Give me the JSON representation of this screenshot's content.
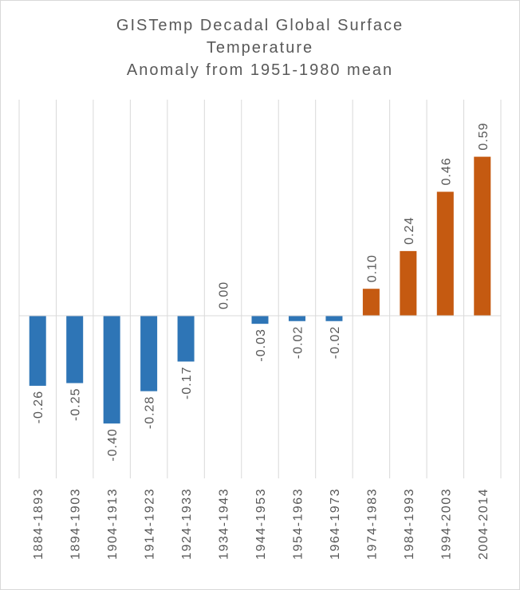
{
  "chart_data": {
    "type": "bar",
    "title": [
      "GISTemp Decadal Global Surface",
      "Temperature",
      "Anomaly from 1951-1980 mean"
    ],
    "xlabel": "",
    "ylabel": "",
    "categories": [
      "1884-1893",
      "1894-1903",
      "1904-1913",
      "1914-1923",
      "1924-1933",
      "1934-1943",
      "1944-1953",
      "1954-1963",
      "1964-1973",
      "1974-1983",
      "1984-1993",
      "1994-2003",
      "2004-2014"
    ],
    "values": [
      -0.26,
      -0.25,
      -0.4,
      -0.28,
      -0.17,
      0.0,
      -0.03,
      -0.02,
      -0.02,
      0.1,
      0.24,
      0.46,
      0.59
    ],
    "data_labels": [
      "-0.26",
      "-0.25",
      "-0.40",
      "-0.28",
      "-0.17",
      "0.00",
      "-0.03",
      "-0.02",
      "-0.02",
      "0.10",
      "0.24",
      "0.46",
      "0.59"
    ],
    "ylim": [
      -0.6,
      0.8
    ],
    "grid": "vertical category separators",
    "colors": {
      "negative": "#2e75b6",
      "positive": "#c55a11",
      "text": "#595959",
      "grid": "#d9d9d9"
    }
  }
}
